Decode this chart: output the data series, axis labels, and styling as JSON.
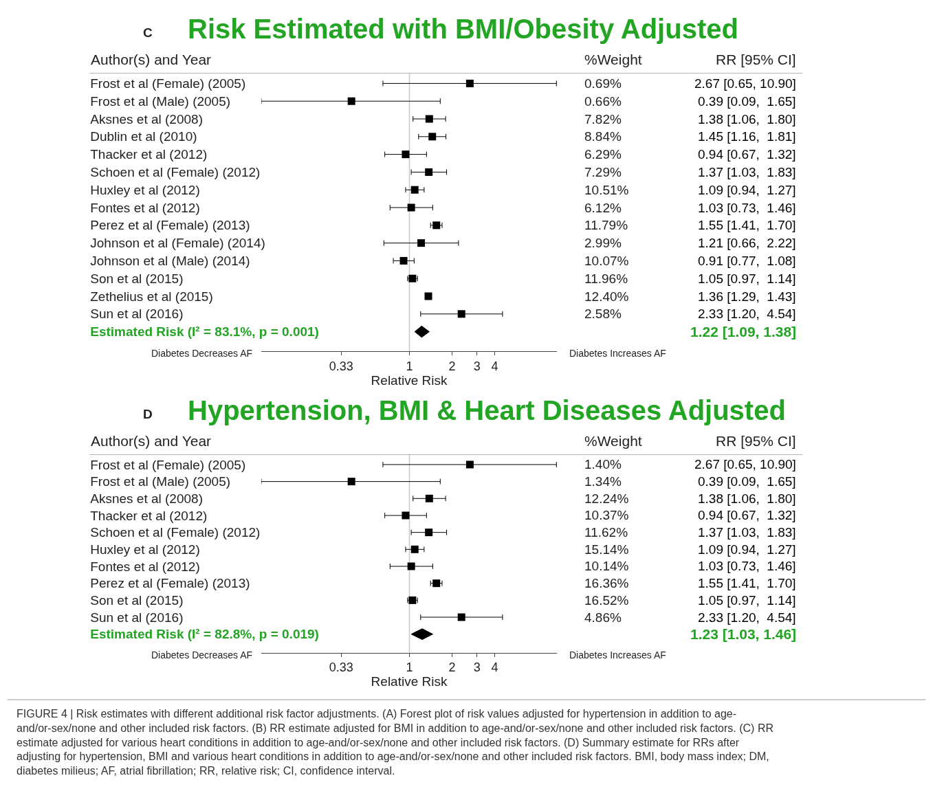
{
  "chart_data": [
    {
      "type": "scatter",
      "title": "Risk Estimated with BMI/Obesity Adjusted",
      "ylabel": "Author(s) and Year",
      "xlabel": "Relative Risk",
      "annotations": [
        "C",
        "%Weight",
        "RR [95% CI]",
        "Diabetes Decreases AF",
        "Diabetes Increases AF",
        "1.22 [1.09, 1.38]"
      ],
      "categories": [
        "Frost et al (Female) (2005)",
        "Frost et al (Male) (2005)",
        "Aksnes et al (2008)",
        "Dublin et al (2010)",
        "Thacker et al (2012)",
        "Schoen et al (Female) (2012)",
        "Huxley et al (2012)",
        "Fontes et al (2012)",
        "Perez et al (Female) (2013)",
        "Johnson et al (Female) (2014)",
        "Johnson et al (Male) (2014)",
        "Son et al (2015)",
        "Zethelius et al (2015)",
        "Sun et al (2016)",
        null
      ],
      "y2_categories": [
        "0.69%",
        "0.66%",
        "7.82%",
        "8.84%",
        "6.29%",
        "7.29%",
        "10.51%",
        "6.12%",
        "11.79%",
        "2.99%",
        "10.07%",
        "11.96%",
        "12.40%",
        "2.58%",
        null
      ],
      "series": [
        {
          "color": "#000000",
          "marker": "square",
          "values": [
            2.67,
            0.39,
            1.38,
            1.45,
            0.94,
            1.37,
            1.09,
            1.03,
            1.55,
            1.21,
            0.91,
            1.05,
            1.36,
            2.33,
            null
          ],
          "errors": [
            [
              0.65,
              10.9
            ],
            [
              0.09,
              1.65
            ],
            [
              1.06,
              1.8
            ],
            [
              1.16,
              1.81
            ],
            [
              0.67,
              1.32
            ],
            [
              1.03,
              1.83
            ],
            [
              0.94,
              1.27
            ],
            [
              0.73,
              1.46
            ],
            [
              1.41,
              1.7
            ],
            [
              0.66,
              2.22
            ],
            [
              0.77,
              1.08
            ],
            [
              0.97,
              1.14
            ],
            null,
            [
              1.2,
              4.54
            ],
            null
          ],
          "value_labels": [
            "2.67 [0.65, 10.90]",
            "0.39 [0.09,  1.65]",
            "1.38 [1.06,  1.80]",
            "1.45 [1.16,  1.81]",
            "0.94 [0.67,  1.32]",
            "1.37 [1.03,  1.83]",
            "1.09 [0.94,  1.27]",
            "1.03 [0.73,  1.46]",
            "1.55 [1.41,  1.70]",
            "1.21 [0.66,  2.22]",
            "0.91 [0.77,  1.08]",
            "1.05 [0.97,  1.14]",
            "1.36 [1.29,  1.43]",
            "2.33 [1.20,  4.54]",
            null
          ]
        },
        {
          "type": "scatter",
          "marker": "diamond",
          "name": "Estimated Risk (I² = 83.1%, p = 0.001)",
          "color": "#000000",
          "values": [
            null,
            null,
            null,
            null,
            null,
            null,
            null,
            null,
            null,
            null,
            null,
            null,
            null,
            null,
            1.22
          ],
          "errors": [
            null,
            null,
            null,
            null,
            null,
            null,
            null,
            null,
            null,
            null,
            null,
            null,
            null,
            null,
            [
              1.09,
              1.38
            ]
          ]
        }
      ],
      "xlim": [
        0.09,
        11
      ],
      "xticks": [
        0.33,
        1,
        2,
        3,
        4
      ],
      "log": "x",
      "orientation": "horizontal",
      "grid": false,
      "ref_lines": [
        {
          "axis": "x",
          "value": 1,
          "color": "#c8c8c8"
        }
      ]
    },
    {
      "type": "scatter",
      "title": "Hypertension, BMI & Heart Diseases Adjusted",
      "ylabel": "Author(s) and Year",
      "xlabel": "Relative Risk",
      "annotations": [
        "D",
        "%Weight",
        "RR [95% CI]",
        "Diabetes Decreases AF",
        "Diabetes Increases AF",
        "1.23 [1.03, 1.46]",
        "FIGURE 4 | Risk estimates with different additional risk factor adjustments. (A) Forest plot of risk values adjusted for hypertension in addition to age-and/or-sex/none and other included risk factors. (B) RR estimate adjusted for BMI in addition to age-and/or-sex/none and other included risk factors. (C) RR estimate adjusted for various heart conditions in addition to age-and/or-sex/none and other included risk factors. (D) Summary estimate for RRs after adjusting for hypertension, BMI and various heart conditions in addition to age-and/or-sex/none and other included risk factors. BMI, body mass index; DM, diabetes milieus; AF, atrial fibrillation; RR, relative risk; CI, confidence interval."
      ],
      "categories": [
        "Frost et al (Female) (2005)",
        "Frost et al (Male) (2005)",
        "Aksnes et al (2008)",
        "Thacker et al (2012)",
        "Schoen et al (Female) (2012)",
        "Huxley et al (2012)",
        "Fontes et al (2012)",
        "Perez et al (Female) (2013)",
        "Son et al (2015)",
        "Sun et al (2016)",
        null
      ],
      "y2_categories": [
        "1.40%",
        "1.34%",
        "12.24%",
        "10.37%",
        "11.62%",
        "15.14%",
        "10.14%",
        "16.36%",
        "16.52%",
        "4.86%",
        null
      ],
      "series": [
        {
          "color": "#000000",
          "marker": "square",
          "values": [
            2.67,
            0.39,
            1.38,
            0.94,
            1.37,
            1.09,
            1.03,
            1.55,
            1.05,
            2.33,
            null
          ],
          "errors": [
            [
              0.65,
              10.9
            ],
            [
              0.09,
              1.65
            ],
            [
              1.06,
              1.8
            ],
            [
              0.67,
              1.32
            ],
            [
              1.03,
              1.83
            ],
            [
              0.94,
              1.27
            ],
            [
              0.73,
              1.46
            ],
            [
              1.41,
              1.7
            ],
            [
              0.97,
              1.14
            ],
            [
              1.2,
              4.54
            ],
            null
          ],
          "value_labels": [
            "2.67 [0.65, 10.90]",
            "0.39 [0.09,  1.65]",
            "1.38 [1.06,  1.80]",
            "0.94 [0.67,  1.32]",
            "1.37 [1.03,  1.83]",
            "1.09 [0.94,  1.27]",
            "1.03 [0.73,  1.46]",
            "1.55 [1.41,  1.70]",
            "1.05 [0.97,  1.14]",
            "2.33 [1.20,  4.54]",
            null
          ]
        },
        {
          "type": "scatter",
          "marker": "diamond",
          "name": "Estimated Risk (I² = 82.8%, p = 0.019)",
          "color": "#000000",
          "values": [
            null,
            null,
            null,
            null,
            null,
            null,
            null,
            null,
            null,
            null,
            1.23
          ],
          "errors": [
            null,
            null,
            null,
            null,
            null,
            null,
            null,
            null,
            null,
            null,
            [
              1.03,
              1.46
            ]
          ]
        }
      ],
      "xlim": [
        0.09,
        11
      ],
      "xticks": [
        0.33,
        1,
        2,
        3,
        4
      ],
      "log": "x",
      "orientation": "horizontal",
      "grid": false,
      "ref_lines": [
        {
          "axis": "x",
          "value": 1,
          "color": "#c8c8c8"
        }
      ]
    }
  ]
}
